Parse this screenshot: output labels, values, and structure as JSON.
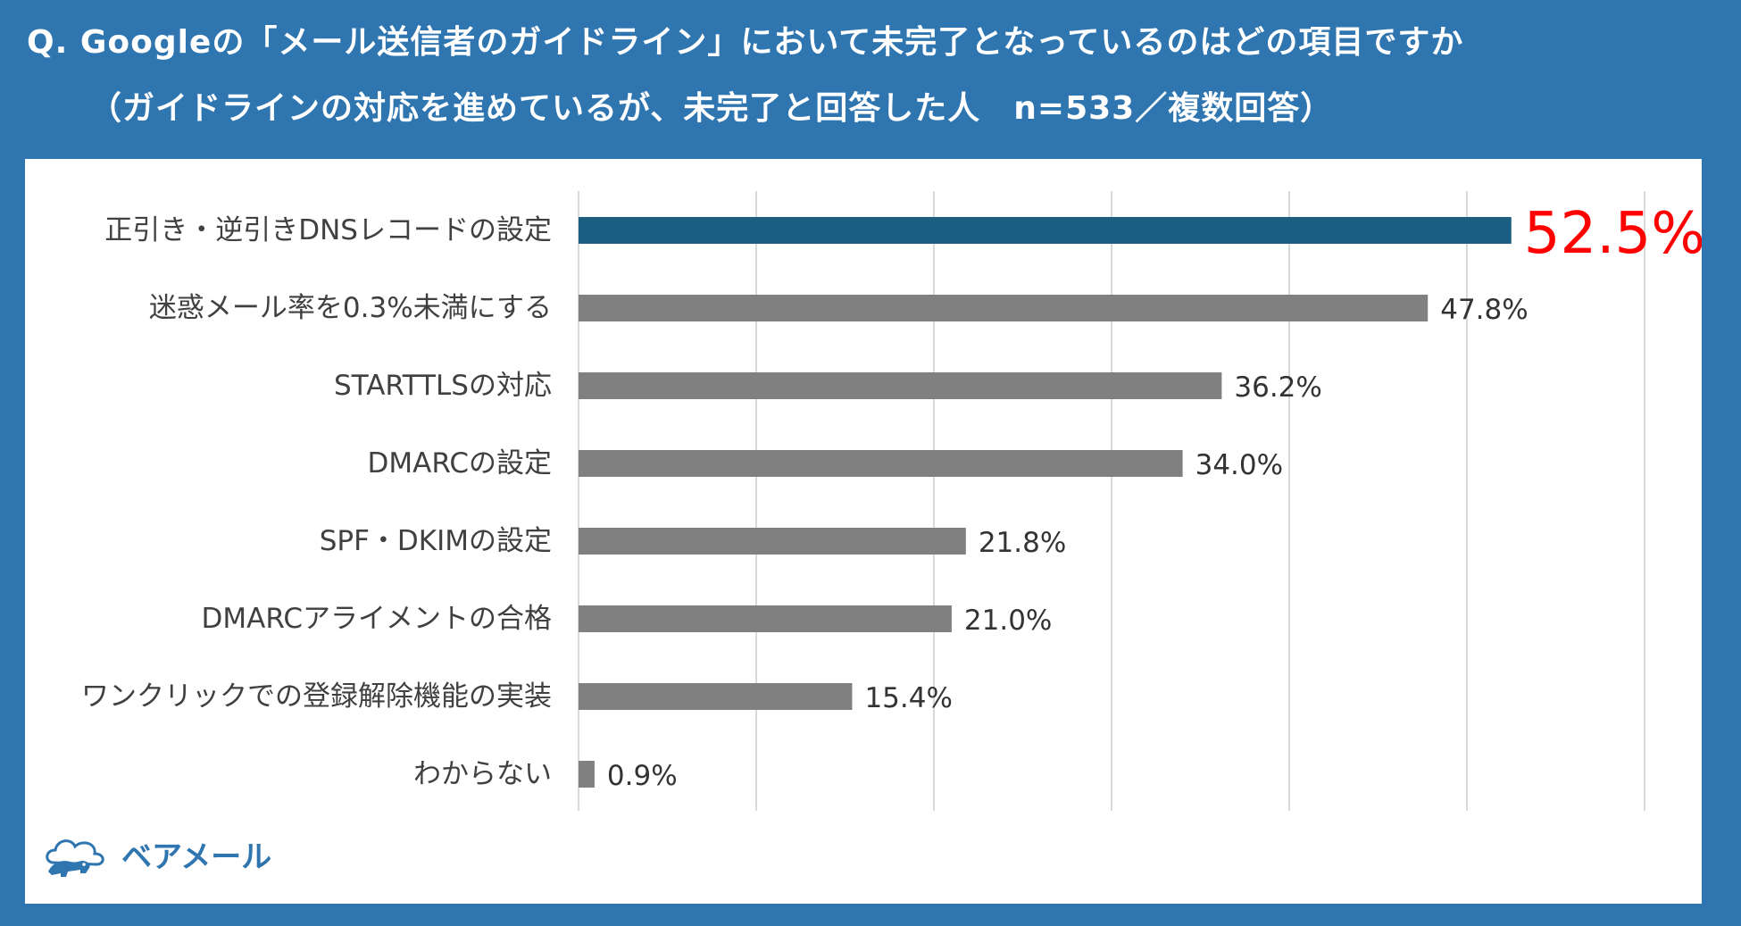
{
  "header": {
    "question_line1": "Q. Googleの「メール送信者のガイドライン」において未完了となっているのはどの項目ですか",
    "question_line2": "（ガイドラインの対応を進めているが、未完了と回答した人　n=533／複数回答）"
  },
  "logo": {
    "name": "ベアメール",
    "icon": "bear-cloud-logo-icon",
    "color": "#2f75b0"
  },
  "colors": {
    "background": "#2f75b0",
    "panel": "#ffffff",
    "highlight_bar": "#1a5f82",
    "default_bar": "#808080",
    "highlight_label": "#ff0000",
    "gridline": "#d9d9d9"
  },
  "chart_data": {
    "type": "bar",
    "orientation": "horizontal",
    "categories": [
      "正引き・逆引きDNSレコードの設定",
      "迷惑メール率を0.3%未満にする",
      "STARTTLSの対応",
      "DMARCの設定",
      "SPF・DKIMの設定",
      "DMARCアライメントの合格",
      "ワンクリックでの登録解除機能の実装",
      "わからない"
    ],
    "values": [
      52.5,
      47.8,
      36.2,
      34.0,
      21.8,
      21.0,
      15.4,
      0.9
    ],
    "value_labels": [
      "52.5%",
      "47.8%",
      "36.2%",
      "34.0%",
      "21.8%",
      "21.0%",
      "15.4%",
      "0.9%"
    ],
    "highlight_index": 0,
    "xlim": [
      0,
      60
    ],
    "grid": true,
    "unit": "%"
  }
}
